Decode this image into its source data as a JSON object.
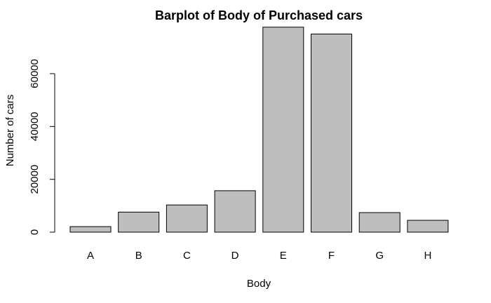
{
  "chart_data": {
    "type": "bar",
    "title": "Barplot of Body of Purchased cars",
    "xlabel": "Body",
    "ylabel": "Number of cars",
    "categories": [
      "A",
      "B",
      "C",
      "D",
      "E",
      "F",
      "G",
      "H"
    ],
    "values": [
      2100,
      7600,
      10300,
      15700,
      77600,
      75000,
      7400,
      4500
    ],
    "ylim": [
      0,
      78000
    ],
    "yticks": [
      0,
      20000,
      40000,
      60000
    ],
    "ytick_labels": [
      "0",
      "20000",
      "40000",
      "60000"
    ],
    "grid": false,
    "legend": "none",
    "colors": {
      "bar_fill": "#bebebe",
      "bar_stroke": "#000000"
    }
  }
}
